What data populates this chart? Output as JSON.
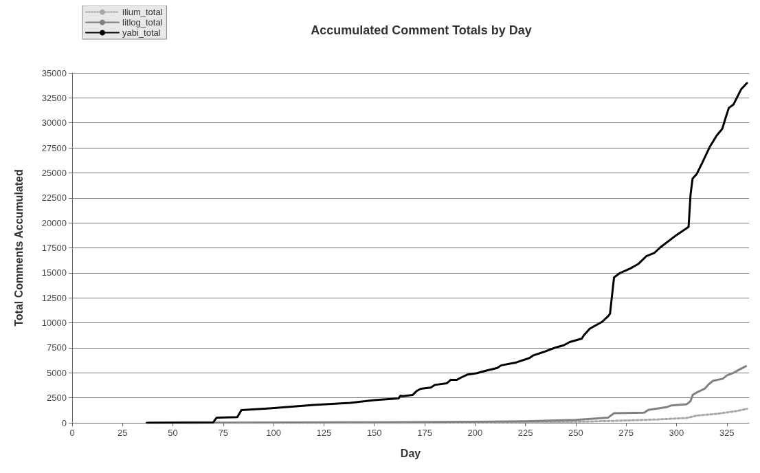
{
  "chart_data": {
    "type": "line",
    "title": "Accumulated Comment Totals by Day",
    "xlabel": "Day",
    "ylabel": "Total Comments Accumulated",
    "xlim": [
      0,
      336
    ],
    "xticks": [
      0,
      25,
      50,
      75,
      100,
      125,
      150,
      175,
      200,
      225,
      250,
      275,
      300,
      325
    ],
    "ylim": [
      0,
      35000
    ],
    "yticks": [
      0,
      2500,
      5000,
      7500,
      10000,
      12500,
      15000,
      17500,
      20000,
      22500,
      25000,
      27500,
      30000,
      32500,
      35000
    ],
    "grid": "y",
    "legend": "top left",
    "marker": "none",
    "line_style": "solid",
    "series": [
      {
        "name": "ilium_total",
        "color": "#a8a8a8",
        "line_style": "dotted",
        "x": [
          100,
          200,
          250,
          270,
          290,
          305,
          310,
          320,
          330,
          335
        ],
        "values": [
          0,
          30,
          100,
          200,
          330,
          480,
          720,
          900,
          1180,
          1400
        ]
      },
      {
        "name": "litlog_total",
        "color": "#808080",
        "x": [
          38,
          150,
          200,
          225,
          250,
          266,
          269,
          284,
          286,
          295,
          297.5,
          305,
          307,
          308,
          310,
          314,
          316,
          318,
          323,
          325,
          328,
          331,
          334.5
        ],
        "values": [
          0,
          60,
          100,
          160,
          290,
          510,
          960,
          1020,
          1290,
          1560,
          1740,
          1850,
          2180,
          2780,
          3030,
          3410,
          3850,
          4190,
          4410,
          4740,
          4970,
          5300,
          5660
        ]
      },
      {
        "name": "yabi_total",
        "color": "#000000",
        "x": [
          37,
          70,
          71.7,
          82,
          84,
          98,
          120,
          138,
          150,
          162,
          163,
          164,
          169,
          171,
          173,
          178,
          180,
          186,
          188,
          191,
          193,
          196,
          201,
          205,
          211,
          213,
          220,
          227,
          229,
          234,
          240,
          244,
          247,
          253,
          254,
          257,
          259,
          263,
          266,
          267,
          269,
          272,
          277,
          281,
          285,
          289,
          292,
          300,
          306,
          307,
          308,
          310,
          312.7,
          316.6,
          320,
          322.7,
          324.4,
          326,
          328.3,
          330.5,
          332.2,
          335
        ],
        "values": [
          0,
          40,
          510,
          560,
          1270,
          1440,
          1780,
          2000,
          2270,
          2440,
          2710,
          2670,
          2780,
          3180,
          3400,
          3520,
          3790,
          3960,
          4300,
          4300,
          4520,
          4810,
          4970,
          5190,
          5480,
          5750,
          6010,
          6480,
          6750,
          7080,
          7530,
          7750,
          8080,
          8420,
          8750,
          9420,
          9640,
          10090,
          10650,
          10910,
          14540,
          14990,
          15430,
          15880,
          16660,
          16990,
          17550,
          18780,
          19600,
          22870,
          24430,
          24870,
          25970,
          27630,
          28740,
          29400,
          30510,
          31500,
          31840,
          32720,
          33390,
          33980
        ]
      }
    ]
  }
}
